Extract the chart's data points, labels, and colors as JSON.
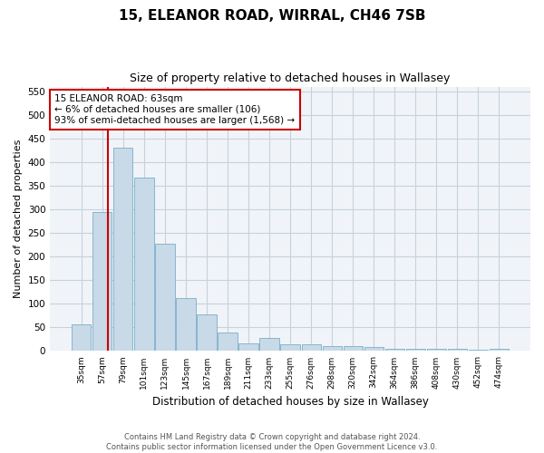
{
  "title": "15, ELEANOR ROAD, WIRRAL, CH46 7SB",
  "subtitle": "Size of property relative to detached houses in Wallasey",
  "xlabel": "Distribution of detached houses by size in Wallasey",
  "ylabel": "Number of detached properties",
  "bar_labels": [
    "35sqm",
    "57sqm",
    "79sqm",
    "101sqm",
    "123sqm",
    "145sqm",
    "167sqm",
    "189sqm",
    "211sqm",
    "233sqm",
    "255sqm",
    "276sqm",
    "298sqm",
    "320sqm",
    "342sqm",
    "364sqm",
    "386sqm",
    "408sqm",
    "430sqm",
    "452sqm",
    "474sqm"
  ],
  "bar_values": [
    57,
    295,
    430,
    368,
    227,
    113,
    78,
    40,
    16,
    27,
    15,
    15,
    10,
    10,
    8,
    5,
    5,
    5,
    5,
    3,
    4
  ],
  "bar_color": "#c8d9e8",
  "bar_edgecolor": "#7aaec8",
  "vline_color": "#cc0000",
  "annotation_text": "15 ELEANOR ROAD: 63sqm\n← 6% of detached houses are smaller (106)\n93% of semi-detached houses are larger (1,568) →",
  "annotation_box_color": "#ffffff",
  "annotation_box_edgecolor": "#cc0000",
  "ylim": [
    0,
    560
  ],
  "yticks": [
    0,
    50,
    100,
    150,
    200,
    250,
    300,
    350,
    400,
    450,
    500,
    550
  ],
  "bg_color": "#ffffff",
  "plot_bg_color": "#f0f4f8",
  "grid_color": "#c8d0dc",
  "footer_text": "Contains HM Land Registry data © Crown copyright and database right 2024.\nContains public sector information licensed under the Open Government Licence v3.0."
}
